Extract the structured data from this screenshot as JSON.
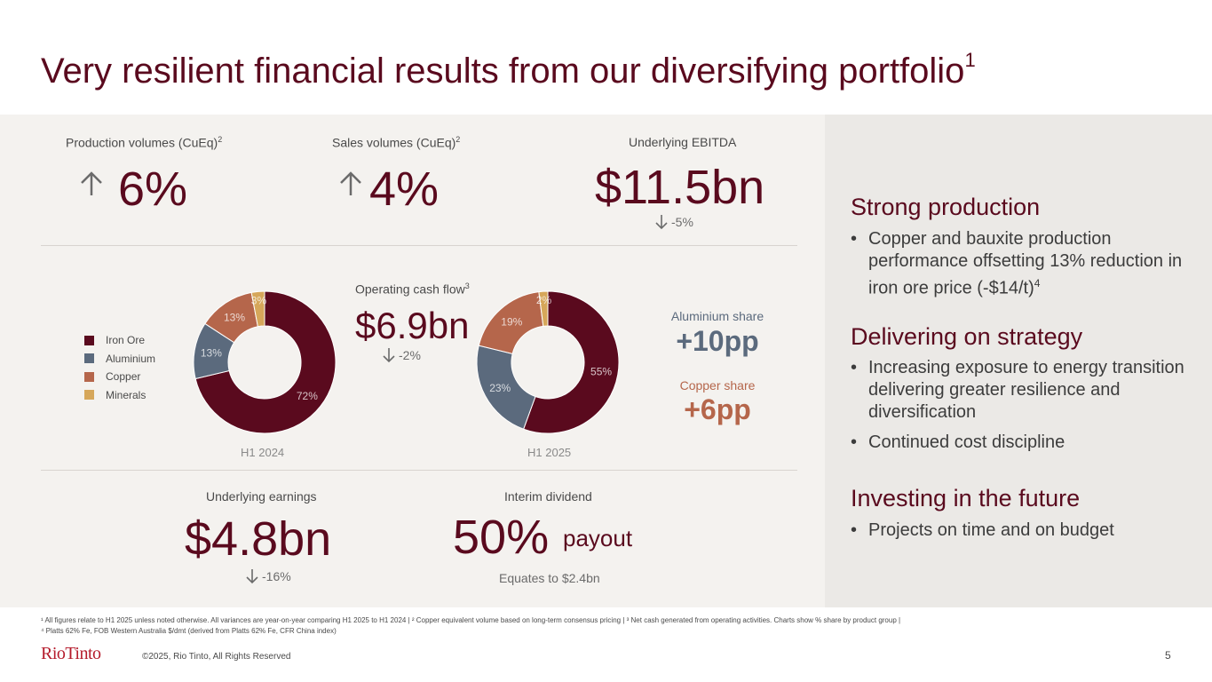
{
  "title": "Very resilient financial results from our diversifying portfolio",
  "title_sup": "1",
  "kpis": {
    "production": {
      "label": "Production volumes (CuEq)",
      "sup": "2",
      "value": "6%"
    },
    "sales": {
      "label": "Sales volumes (CuEq)",
      "sup": "2",
      "value": "4%"
    },
    "ebitda": {
      "label": "Underlying EBITDA",
      "value": "$11.5bn",
      "change": "-5%"
    },
    "cashflow": {
      "label": "Operating cash flow",
      "sup": "3",
      "value": "$6.9bn",
      "change": "-2%"
    },
    "earnings": {
      "label": "Underlying earnings",
      "value": "$4.8bn",
      "change": "-16%"
    },
    "dividend": {
      "label": "Interim dividend",
      "value": "50%",
      "suffix": "payout",
      "note": "Equates to $2.4bn"
    }
  },
  "shares": {
    "aluminium": {
      "label": "Aluminium share",
      "value": "+10pp"
    },
    "copper": {
      "label": "Copper share",
      "value": "+6pp"
    }
  },
  "chart_data": [
    {
      "type": "pie",
      "title": "H1 2024",
      "categories": [
        "Iron Ore",
        "Aluminium",
        "Copper",
        "Minerals"
      ],
      "values": [
        72,
        13,
        13,
        3
      ],
      "labels": [
        "72%",
        "13%",
        "13%",
        "3%"
      ],
      "colors": [
        "#5a0a1e",
        "#5b6a7d",
        "#b5664b",
        "#d6a75a"
      ]
    },
    {
      "type": "pie",
      "title": "H1 2025",
      "categories": [
        "Iron Ore",
        "Aluminium",
        "Copper",
        "Minerals"
      ],
      "values": [
        55,
        23,
        19,
        2
      ],
      "labels": [
        "55%",
        "23%",
        "19%",
        "2%"
      ],
      "colors": [
        "#5a0a1e",
        "#5b6a7d",
        "#b5664b",
        "#d6a75a"
      ]
    }
  ],
  "legend": [
    {
      "label": "Iron Ore",
      "color": "#5a0a1e"
    },
    {
      "label": "Aluminium",
      "color": "#5b6a7d"
    },
    {
      "label": "Copper",
      "color": "#b5664b"
    },
    {
      "label": "Minerals",
      "color": "#d6a75a"
    }
  ],
  "colors": {
    "primary": "#5a0a1e",
    "aluminium": "#5b6a7d",
    "copper": "#b5664b",
    "arrow": "#6b6b6b"
  },
  "right_panel": {
    "sections": [
      {
        "heading": "Strong production",
        "bullets": [
          {
            "text": "Copper and bauxite production performance offsetting 13% reduction in iron ore price (-$14/t)",
            "sup": "4"
          }
        ]
      },
      {
        "heading": "Delivering on strategy",
        "bullets": [
          {
            "text": "Increasing exposure to energy transition delivering greater resilience and diversification"
          },
          {
            "text": "Continued cost discipline"
          }
        ]
      },
      {
        "heading": "Investing in the future",
        "bullets": [
          {
            "text": "Projects on time and on budget"
          }
        ]
      }
    ]
  },
  "footnotes": [
    "¹ All figures relate to H1 2025 unless noted otherwise. All variances are year-on-year comparing H1 2025 to H1 2024 | ² Copper equivalent volume based on long-term consensus pricing | ³ Net cash generated from operating activities. Charts show % share by product group |",
    "⁴ Platts 62% Fe, FOB Western Australia $/dmt (derived from Platts 62% Fe, CFR China index)"
  ],
  "footer": {
    "logo": "RioTinto",
    "copyright": "©2025, Rio Tinto, All Rights Reserved",
    "page": "5"
  }
}
